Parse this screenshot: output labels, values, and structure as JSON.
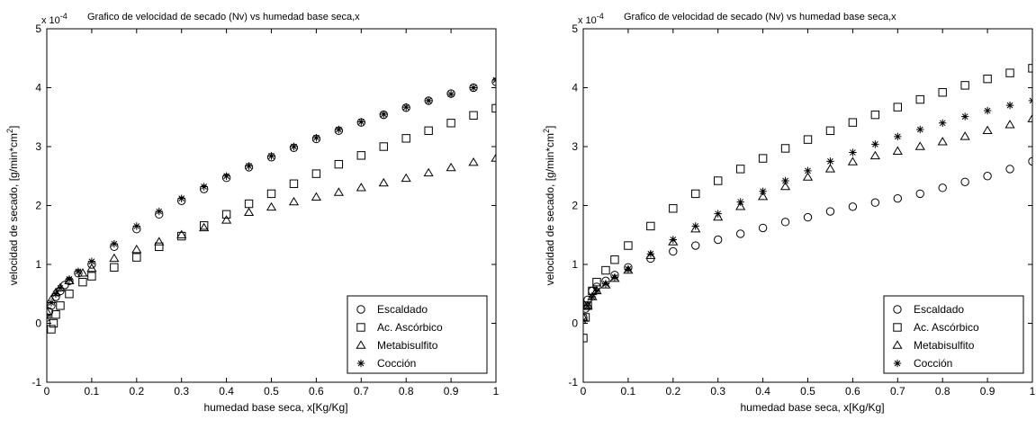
{
  "chart_data": [
    {
      "type": "scatter",
      "title": "Grafico de velocidad de secado (Nv) vs humedad base seca,x",
      "scale_label": "x 10",
      "scale_exponent": "-4",
      "xlabel": "humedad base seca, x[Kg/Kg]",
      "ylabel_main": "velocidad de secado, [g/min*cm",
      "ylabel_sup": "2",
      "ylabel_end": "]",
      "xlim": [
        0,
        1
      ],
      "ylim": [
        -1,
        5
      ],
      "xticks": [
        "0",
        "0.1",
        "0.2",
        "0.3",
        "0.4",
        "0.5",
        "0.6",
        "0.7",
        "0.8",
        "0.9",
        "1"
      ],
      "yticks": [
        "-1",
        "0",
        "1",
        "2",
        "3",
        "4",
        "5"
      ],
      "grid": false,
      "legend_position": "bottom-right",
      "series": [
        {
          "name": "Escaldado",
          "marker": "circle",
          "x": [
            0.0,
            0.005,
            0.01,
            0.02,
            0.03,
            0.04,
            0.05,
            0.07,
            0.1,
            0.15,
            0.2,
            0.25,
            0.3,
            0.35,
            0.4,
            0.45,
            0.5,
            0.55,
            0.6,
            0.65,
            0.7,
            0.75,
            0.8,
            0.85,
            0.9,
            0.95,
            1.0
          ],
          "y": [
            0.1,
            0.2,
            0.3,
            0.45,
            0.55,
            0.65,
            0.72,
            0.85,
            1.0,
            1.3,
            1.6,
            1.85,
            2.08,
            2.28,
            2.47,
            2.65,
            2.82,
            2.98,
            3.13,
            3.27,
            3.41,
            3.54,
            3.66,
            3.78,
            3.9,
            4.0,
            4.1
          ]
        },
        {
          "name": "Ac. Ascórbico",
          "marker": "square",
          "x": [
            0.01,
            0.015,
            0.02,
            0.03,
            0.05,
            0.08,
            0.1,
            0.15,
            0.2,
            0.25,
            0.3,
            0.35,
            0.4,
            0.45,
            0.5,
            0.55,
            0.6,
            0.65,
            0.7,
            0.75,
            0.8,
            0.85,
            0.9,
            0.95,
            1.0
          ],
          "y": [
            -0.1,
            0.0,
            0.15,
            0.3,
            0.5,
            0.7,
            0.8,
            0.95,
            1.12,
            1.3,
            1.48,
            1.66,
            1.85,
            2.03,
            2.2,
            2.37,
            2.54,
            2.7,
            2.85,
            3.0,
            3.14,
            3.27,
            3.4,
            3.53,
            3.65
          ]
        },
        {
          "name": "Metabisulfito",
          "marker": "triangle",
          "x": [
            0.0,
            0.01,
            0.02,
            0.03,
            0.05,
            0.08,
            0.1,
            0.15,
            0.2,
            0.25,
            0.3,
            0.35,
            0.4,
            0.45,
            0.5,
            0.55,
            0.6,
            0.65,
            0.7,
            0.75,
            0.8,
            0.85,
            0.9,
            0.95,
            1.0
          ],
          "y": [
            0.2,
            0.4,
            0.52,
            0.6,
            0.72,
            0.85,
            0.93,
            1.1,
            1.25,
            1.38,
            1.5,
            1.62,
            1.75,
            1.88,
            1.97,
            2.06,
            2.14,
            2.22,
            2.3,
            2.38,
            2.46,
            2.55,
            2.64,
            2.73,
            2.8
          ]
        },
        {
          "name": "Cocción",
          "marker": "star",
          "x": [
            0.0,
            0.01,
            0.02,
            0.03,
            0.05,
            0.07,
            0.1,
            0.15,
            0.2,
            0.25,
            0.3,
            0.35,
            0.4,
            0.45,
            0.5,
            0.55,
            0.6,
            0.65,
            0.7,
            0.75,
            0.8,
            0.85,
            0.9,
            0.95,
            1.0
          ],
          "y": [
            0.1,
            0.35,
            0.5,
            0.6,
            0.75,
            0.88,
            1.05,
            1.35,
            1.65,
            1.9,
            2.12,
            2.32,
            2.5,
            2.67,
            2.84,
            3.0,
            3.15,
            3.29,
            3.42,
            3.55,
            3.67,
            3.78,
            3.89,
            4.0,
            4.13
          ]
        }
      ]
    },
    {
      "type": "scatter",
      "title": "Grafico de velocidad de secado (Nv) vs humedad base seca,x",
      "scale_label": "x 10",
      "scale_exponent": "-4",
      "xlabel": "humedad base seca, x[Kg/Kg]",
      "ylabel_main": "velocidad de secado, [g/min*cm",
      "ylabel_sup": "2",
      "ylabel_end": "]",
      "xlim": [
        0,
        1
      ],
      "ylim": [
        -1,
        5
      ],
      "xticks": [
        "0",
        "0.1",
        "0.2",
        "0.3",
        "0.4",
        "0.5",
        "0.6",
        "0.7",
        "0.8",
        "0.9",
        "1"
      ],
      "yticks": [
        "-1",
        "0",
        "1",
        "2",
        "3",
        "4",
        "5"
      ],
      "grid": false,
      "legend_position": "bottom-right",
      "series": [
        {
          "name": "Escaldado",
          "marker": "circle",
          "x": [
            0.0,
            0.005,
            0.01,
            0.02,
            0.03,
            0.05,
            0.07,
            0.1,
            0.15,
            0.2,
            0.25,
            0.3,
            0.35,
            0.4,
            0.45,
            0.5,
            0.55,
            0.6,
            0.65,
            0.7,
            0.75,
            0.8,
            0.85,
            0.9,
            0.95,
            1.0
          ],
          "y": [
            0.1,
            0.25,
            0.4,
            0.55,
            0.62,
            0.72,
            0.82,
            0.95,
            1.1,
            1.22,
            1.32,
            1.42,
            1.52,
            1.62,
            1.72,
            1.8,
            1.9,
            1.98,
            2.05,
            2.12,
            2.2,
            2.3,
            2.4,
            2.5,
            2.62,
            2.75
          ]
        },
        {
          "name": "Ac. Ascórbico",
          "marker": "square",
          "x": [
            0.0,
            0.005,
            0.01,
            0.02,
            0.03,
            0.05,
            0.07,
            0.1,
            0.15,
            0.2,
            0.25,
            0.3,
            0.35,
            0.4,
            0.45,
            0.5,
            0.55,
            0.6,
            0.65,
            0.7,
            0.75,
            0.8,
            0.85,
            0.9,
            0.95,
            1.0
          ],
          "y": [
            -0.25,
            0.1,
            0.3,
            0.55,
            0.7,
            0.9,
            1.08,
            1.32,
            1.65,
            1.95,
            2.2,
            2.42,
            2.62,
            2.8,
            2.97,
            3.12,
            3.27,
            3.41,
            3.54,
            3.67,
            3.8,
            3.92,
            4.04,
            4.15,
            4.25,
            4.33
          ]
        },
        {
          "name": "Metabisulfito",
          "marker": "triangle",
          "x": [
            0.0,
            0.01,
            0.02,
            0.03,
            0.05,
            0.07,
            0.1,
            0.15,
            0.2,
            0.25,
            0.3,
            0.35,
            0.4,
            0.45,
            0.5,
            0.55,
            0.6,
            0.65,
            0.7,
            0.75,
            0.8,
            0.85,
            0.9,
            0.95,
            1.0
          ],
          "y": [
            0.1,
            0.3,
            0.45,
            0.55,
            0.65,
            0.76,
            0.9,
            1.15,
            1.38,
            1.6,
            1.8,
            1.98,
            2.15,
            2.32,
            2.48,
            2.62,
            2.74,
            2.84,
            2.92,
            3.0,
            3.08,
            3.17,
            3.27,
            3.37,
            3.47
          ]
        },
        {
          "name": "Cocción",
          "marker": "star",
          "x": [
            0.0,
            0.01,
            0.02,
            0.03,
            0.05,
            0.07,
            0.1,
            0.15,
            0.2,
            0.25,
            0.3,
            0.35,
            0.4,
            0.45,
            0.5,
            0.55,
            0.6,
            0.65,
            0.7,
            0.75,
            0.8,
            0.85,
            0.9,
            0.95,
            1.0
          ],
          "y": [
            0.05,
            0.3,
            0.45,
            0.55,
            0.67,
            0.78,
            0.92,
            1.18,
            1.42,
            1.65,
            1.86,
            2.06,
            2.24,
            2.42,
            2.59,
            2.75,
            2.9,
            3.04,
            3.17,
            3.29,
            3.4,
            3.51,
            3.61,
            3.7,
            3.78
          ]
        }
      ]
    }
  ]
}
